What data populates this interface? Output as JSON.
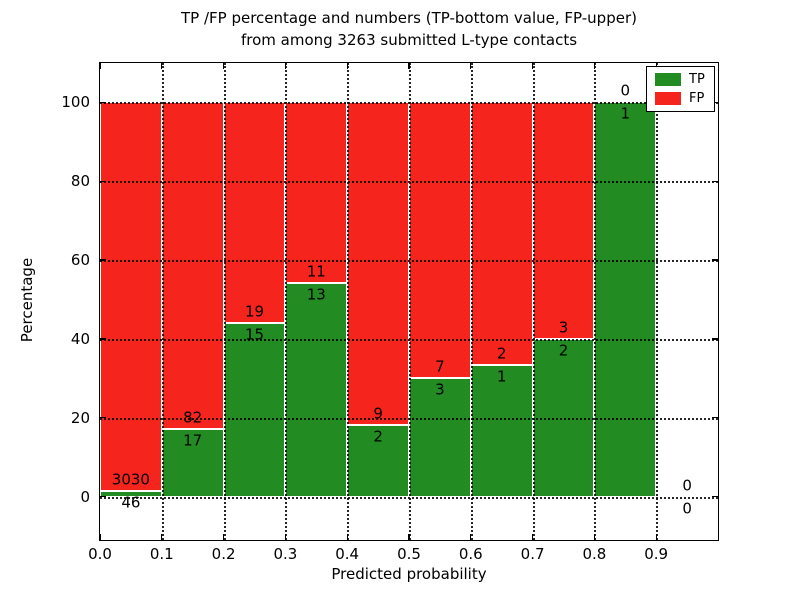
{
  "title": {
    "line1": "TP /FP percentage and numbers (TP-bottom value, FP-upper)",
    "line2": "from among 3263 submitted L-type contacts"
  },
  "chart_data": {
    "type": "bar",
    "stacked": true,
    "normalized_to_percent": true,
    "title": "TP /FP percentage and numbers (TP-bottom value, FP-upper) from among 3263 submitted L-type contacts",
    "xlabel": "Predicted probability",
    "ylabel": "Percentage",
    "xlim": [
      0.0,
      1.0
    ],
    "ylim": [
      -11,
      110
    ],
    "x_ticks": [
      "0.0",
      "0.1",
      "0.2",
      "0.3",
      "0.4",
      "0.5",
      "0.6",
      "0.7",
      "0.8",
      "0.9"
    ],
    "y_ticks": [
      "0",
      "20",
      "40",
      "60",
      "80",
      "100"
    ],
    "grid": true,
    "grid_style": "dotted",
    "bin_width": 0.1,
    "total_contacts": 3263,
    "bins": [
      {
        "range": [
          0.0,
          0.1
        ],
        "tp": 46,
        "fp": 3030,
        "tp_percent": 1.5
      },
      {
        "range": [
          0.1,
          0.2
        ],
        "tp": 17,
        "fp": 82,
        "tp_percent": 17.2
      },
      {
        "range": [
          0.2,
          0.3
        ],
        "tp": 15,
        "fp": 19,
        "tp_percent": 44.1
      },
      {
        "range": [
          0.3,
          0.4
        ],
        "tp": 13,
        "fp": 11,
        "tp_percent": 54.2
      },
      {
        "range": [
          0.4,
          0.5
        ],
        "tp": 2,
        "fp": 9,
        "tp_percent": 18.2
      },
      {
        "range": [
          0.5,
          0.6
        ],
        "tp": 3,
        "fp": 7,
        "tp_percent": 30.0
      },
      {
        "range": [
          0.6,
          0.7
        ],
        "tp": 1,
        "fp": 2,
        "tp_percent": 33.3
      },
      {
        "range": [
          0.7,
          0.8
        ],
        "tp": 2,
        "fp": 3,
        "tp_percent": 40.0
      },
      {
        "range": [
          0.8,
          0.9
        ],
        "tp": 1,
        "fp": 0,
        "tp_percent": 100.0
      },
      {
        "range": [
          0.9,
          1.0
        ],
        "tp": 0,
        "fp": 0,
        "tp_percent": 0.0
      }
    ],
    "legend": {
      "position": "upper right",
      "entries": [
        {
          "label": "TP",
          "color": "#228b22"
        },
        {
          "label": "FP",
          "color": "#f5241d"
        }
      ]
    },
    "colors": {
      "tp": "#228b22",
      "fp": "#f5241d",
      "bar_edge": "#ffffff",
      "grid": "#000000",
      "spine": "#000000",
      "background": "#ffffff"
    }
  }
}
